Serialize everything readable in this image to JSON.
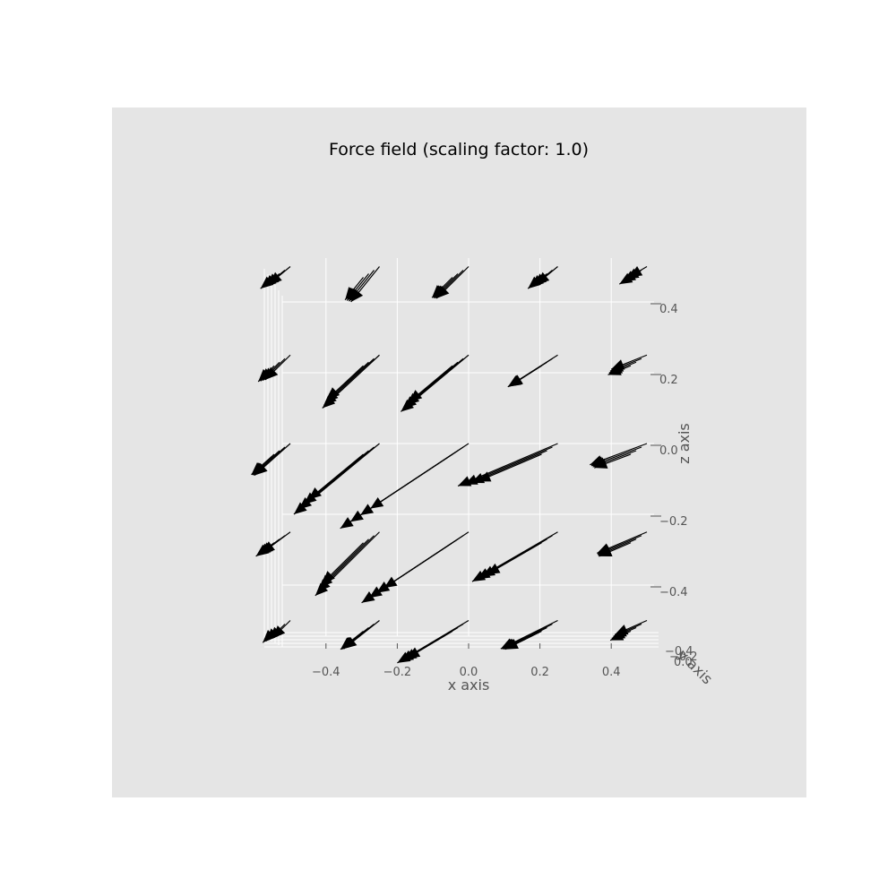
{
  "chart_data": {
    "type": "quiver3d",
    "title": "Force field (scaling factor: 1.0)",
    "xlabel": "x axis",
    "ylabel": "y axis",
    "zlabel": "z axis",
    "xlim": [
      -0.5,
      0.5
    ],
    "zlim": [
      -0.5,
      0.5
    ],
    "x_ticks": [
      "−0.4",
      "−0.2",
      "0.0",
      "0.2",
      "0.4"
    ],
    "x_tick_values": [
      -0.4,
      -0.2,
      0.0,
      0.2,
      0.4
    ],
    "z_ticks": [
      "−0.4",
      "−0.2",
      "0.0",
      "0.2",
      "0.4"
    ],
    "z_tick_values": [
      -0.4,
      -0.2,
      0.0,
      0.2,
      0.4
    ],
    "y_ticks": [
      "−0.4",
      "−0.2",
      "0.0"
    ],
    "grid": true,
    "arrow_color": "#000000",
    "pane_color": "#e5e5e5",
    "grid_x": [
      -0.5,
      -0.25,
      0.0,
      0.25,
      0.5
    ],
    "grid_z": [
      -0.5,
      -0.25,
      0.0,
      0.25,
      0.5
    ],
    "arrows": [
      {
        "x": -0.5,
        "z": 0.5,
        "u": -0.06,
        "w": -0.05
      },
      {
        "x": -0.25,
        "z": 0.5,
        "u": -0.08,
        "w": -0.1
      },
      {
        "x": 0.0,
        "z": 0.5,
        "u": -0.09,
        "w": -0.09
      },
      {
        "x": 0.25,
        "z": 0.5,
        "u": -0.06,
        "w": -0.05
      },
      {
        "x": 0.5,
        "z": 0.5,
        "u": -0.05,
        "w": -0.03
      },
      {
        "x": -0.5,
        "z": 0.25,
        "u": -0.07,
        "w": -0.07
      },
      {
        "x": -0.25,
        "z": 0.25,
        "u": -0.16,
        "w": -0.15
      },
      {
        "x": 0.0,
        "z": 0.25,
        "u": -0.19,
        "w": -0.16
      },
      {
        "x": 0.25,
        "z": 0.25,
        "u": -0.14,
        "w": -0.09
      },
      {
        "x": 0.5,
        "z": 0.25,
        "u": -0.1,
        "w": -0.04
      },
      {
        "x": -0.5,
        "z": 0.0,
        "u": -0.1,
        "w": -0.09
      },
      {
        "x": -0.25,
        "z": 0.0,
        "u": -0.24,
        "w": -0.2
      },
      {
        "x": 0.0,
        "z": 0.0,
        "u": -0.36,
        "w": -0.24
      },
      {
        "x": 0.25,
        "z": 0.0,
        "u": -0.28,
        "w": -0.12
      },
      {
        "x": 0.5,
        "z": 0.0,
        "u": -0.16,
        "w": -0.06
      },
      {
        "x": -0.5,
        "z": -0.25,
        "u": -0.08,
        "w": -0.06
      },
      {
        "x": -0.25,
        "z": -0.25,
        "u": -0.18,
        "w": -0.18
      },
      {
        "x": 0.0,
        "z": -0.25,
        "u": -0.3,
        "w": -0.2
      },
      {
        "x": 0.25,
        "z": -0.25,
        "u": -0.24,
        "w": -0.14
      },
      {
        "x": 0.5,
        "z": -0.25,
        "u": -0.14,
        "w": -0.06
      },
      {
        "x": -0.5,
        "z": -0.5,
        "u": -0.05,
        "w": -0.05
      },
      {
        "x": -0.25,
        "z": -0.5,
        "u": -0.1,
        "w": -0.08
      },
      {
        "x": 0.0,
        "z": -0.5,
        "u": -0.2,
        "w": -0.12
      },
      {
        "x": 0.25,
        "z": -0.5,
        "u": -0.16,
        "w": -0.08
      },
      {
        "x": 0.5,
        "z": -0.5,
        "u": -0.09,
        "w": -0.04
      }
    ],
    "depth_copies": 4
  }
}
